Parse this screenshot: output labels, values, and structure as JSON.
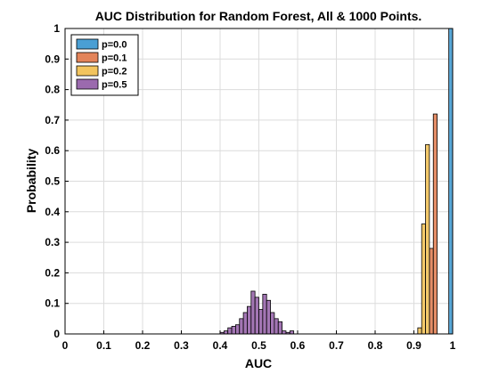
{
  "chart_data": {
    "type": "bar",
    "title": "AUC Distribution for Random Forest, All & 1000 Points.",
    "xlabel": "AUC",
    "ylabel": "Probability",
    "xlim": [
      0,
      1
    ],
    "ylim": [
      0,
      1
    ],
    "xticks": [
      "0",
      "0.1",
      "0.2",
      "0.3",
      "0.4",
      "0.5",
      "0.6",
      "0.7",
      "0.8",
      "0.9",
      "1"
    ],
    "yticks": [
      "0",
      "0.1",
      "0.2",
      "0.3",
      "0.4",
      "0.5",
      "0.6",
      "0.7",
      "0.8",
      "0.9",
      "1"
    ],
    "grid": true,
    "legend_position": "top-left",
    "bin_width": 0.01,
    "series": [
      {
        "name": "p=0.0",
        "color": "#4a9fd4",
        "bins": [
          {
            "x": 0.99,
            "y": 1.0
          }
        ]
      },
      {
        "name": "p=0.1",
        "color": "#e3845a",
        "bins": [
          {
            "x": 0.94,
            "y": 0.28
          },
          {
            "x": 0.95,
            "y": 0.72
          }
        ]
      },
      {
        "name": "p=0.2",
        "color": "#f2c45e",
        "bins": [
          {
            "x": 0.91,
            "y": 0.02
          },
          {
            "x": 0.92,
            "y": 0.36
          },
          {
            "x": 0.93,
            "y": 0.62
          }
        ]
      },
      {
        "name": "p=0.5",
        "color": "#9b6aae",
        "bins": [
          {
            "x": 0.4,
            "y": 0.005
          },
          {
            "x": 0.41,
            "y": 0.01
          },
          {
            "x": 0.42,
            "y": 0.02
          },
          {
            "x": 0.43,
            "y": 0.025
          },
          {
            "x": 0.44,
            "y": 0.03
          },
          {
            "x": 0.45,
            "y": 0.05
          },
          {
            "x": 0.46,
            "y": 0.07
          },
          {
            "x": 0.47,
            "y": 0.09
          },
          {
            "x": 0.48,
            "y": 0.14
          },
          {
            "x": 0.49,
            "y": 0.12
          },
          {
            "x": 0.5,
            "y": 0.08
          },
          {
            "x": 0.51,
            "y": 0.13
          },
          {
            "x": 0.52,
            "y": 0.11
          },
          {
            "x": 0.53,
            "y": 0.07
          },
          {
            "x": 0.54,
            "y": 0.05
          },
          {
            "x": 0.55,
            "y": 0.04
          },
          {
            "x": 0.56,
            "y": 0.01
          },
          {
            "x": 0.57,
            "y": 0.005
          },
          {
            "x": 0.58,
            "y": 0.01
          }
        ]
      }
    ]
  }
}
